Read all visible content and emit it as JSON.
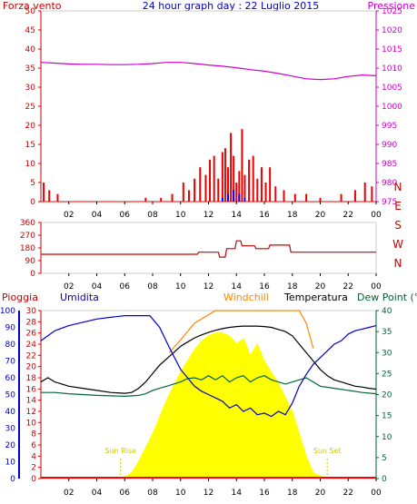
{
  "title": "24 hour graph day : 22 Luglio 2015",
  "colors": {
    "axis_red": "#cc0000",
    "axis_magenta": "#cc00cc",
    "axis_blue": "#0000cc",
    "axis_green": "#006633",
    "wind_bars": "#ee0000",
    "gust_bars": "#0000ee",
    "pressure": "#cc00cc",
    "direction": "#cc0000",
    "humidity": "#0000cc",
    "windchill": "#ff8800",
    "temperature": "#000000",
    "dewpoint": "#006633",
    "solar": "#ffff00",
    "sun_labels": "#cccc00",
    "rain": "#ff0000"
  },
  "x_ticks": [
    "02",
    "04",
    "06",
    "08",
    "10",
    "12",
    "14",
    "16",
    "18",
    "20",
    "22",
    "00"
  ],
  "chart_data": [
    {
      "type": "bar",
      "panel": "wind-pressure",
      "left_axis_label": "Forza vento",
      "right_axis_label": "Pressione",
      "left_ticks": [
        "0",
        "5",
        "10",
        "15",
        "20",
        "25",
        "30",
        "35",
        "40",
        "45",
        "50"
      ],
      "right_ticks": [
        "975",
        "980",
        "985",
        "990",
        "995",
        "1000",
        "1005",
        "1010",
        "1015",
        "1020",
        "1025"
      ],
      "ylim_left": [
        0,
        50
      ],
      "ylim_right": [
        975,
        1025
      ],
      "pressure_series": {
        "x": [
          0,
          1,
          2,
          3,
          4,
          5,
          6,
          7,
          8,
          9,
          10,
          11,
          12,
          13,
          14,
          15,
          16,
          17,
          18,
          19,
          20,
          21,
          22,
          23,
          24
        ],
        "values": [
          1011.5,
          1011.3,
          1011.1,
          1011.0,
          1011.0,
          1010.9,
          1010.9,
          1011.0,
          1011.2,
          1011.5,
          1011.5,
          1011.2,
          1010.8,
          1010.5,
          1010.1,
          1009.6,
          1009.2,
          1008.6,
          1007.9,
          1007.2,
          1007.0,
          1007.2,
          1007.8,
          1008.2,
          1008.0
        ]
      },
      "wind_series": {
        "x": [
          0.2,
          0.6,
          1.2,
          7.5,
          8.6,
          9.4,
          10.2,
          10.6,
          11.0,
          11.4,
          11.8,
          12.1,
          12.4,
          12.7,
          13.0,
          13.2,
          13.4,
          13.6,
          13.8,
          14.0,
          14.2,
          14.4,
          14.6,
          14.9,
          15.2,
          15.5,
          15.8,
          16.1,
          16.4,
          16.8,
          17.4,
          18.2,
          19.0,
          20.0,
          21.5,
          22.5,
          23.2,
          23.7
        ],
        "values": [
          5,
          3,
          2,
          1,
          1,
          2,
          5,
          3,
          6,
          9,
          7,
          11,
          12,
          6,
          13,
          14,
          9,
          18,
          12,
          5,
          8,
          19,
          7,
          11,
          12,
          6,
          9,
          5,
          9,
          4,
          3,
          2,
          2,
          1,
          2,
          3,
          5,
          4
        ]
      },
      "gust_series": {
        "x": [
          13.0,
          13.4,
          13.8,
          14.2,
          14.6
        ],
        "values": [
          1,
          2,
          3,
          2,
          1
        ]
      }
    },
    {
      "type": "line",
      "panel": "wind-direction",
      "left_ticks": [
        "0",
        "90",
        "180",
        "270",
        "360"
      ],
      "right_ticks": [
        "N",
        "W",
        "S",
        "E",
        "N"
      ],
      "ylim": [
        0,
        360
      ],
      "x": [
        0,
        1,
        2,
        4,
        6,
        8,
        10,
        11.2,
        11.3,
        12.0,
        12.7,
        12.8,
        13.2,
        13.3,
        13.9,
        14.0,
        14.3,
        14.4,
        15.3,
        15.4,
        16.3,
        16.4,
        17.8,
        17.9,
        20,
        22,
        24
      ],
      "values": [
        135,
        135,
        135,
        135,
        135,
        135,
        135,
        135,
        150,
        150,
        150,
        115,
        115,
        175,
        175,
        230,
        230,
        195,
        195,
        175,
        175,
        200,
        200,
        150,
        150,
        150,
        150
      ]
    },
    {
      "type": "line",
      "panel": "temperature-humidity-solar",
      "left_axis_label": "Pioggia",
      "left2_axis_label": "Umidita",
      "series_labels": [
        "Windchill",
        "Temperatura",
        "Dew Point (°C"
      ],
      "rain_ticks": [
        "0",
        "2",
        "4",
        "6",
        "8",
        "10",
        "12",
        "14",
        "16",
        "18",
        "20",
        "22",
        "24",
        "26",
        "28",
        "30"
      ],
      "humidity_ticks": [
        "0",
        "10",
        "20",
        "30",
        "40",
        "50",
        "60",
        "70",
        "80",
        "90",
        "100"
      ],
      "temp_ticks": [
        "0",
        "5",
        "10",
        "15",
        "20",
        "25",
        "30",
        "35",
        "40"
      ],
      "ylim_rain": [
        0,
        30
      ],
      "ylim_humidity": [
        0,
        100
      ],
      "ylim_temp": [
        0,
        40
      ],
      "annotations": [
        "Sun Rise",
        "Sun Set"
      ],
      "sunrise_hour": 5.7,
      "sunset_hour": 20.5,
      "humidity": {
        "x": [
          0,
          0.5,
          1,
          2,
          3,
          4,
          5,
          6,
          7,
          7.8,
          8.5,
          9.2,
          10,
          10.5,
          11,
          11.5,
          12,
          12.5,
          13,
          13.5,
          14,
          14.5,
          15,
          15.5,
          16,
          16.5,
          17,
          17.5,
          18,
          18.5,
          19,
          19.5,
          20,
          20.5,
          21,
          21.5,
          22,
          22.5,
          23,
          23.5,
          24
        ],
        "values": [
          82,
          85,
          88,
          91,
          93,
          95,
          96,
          97,
          97,
          97,
          90,
          78,
          65,
          60,
          55,
          52,
          50,
          48,
          46,
          42,
          44,
          40,
          42,
          38,
          39,
          37,
          40,
          38,
          45,
          55,
          62,
          68,
          72,
          76,
          80,
          82,
          86,
          88,
          89,
          90,
          91
        ]
      },
      "windchill": {
        "x": [
          9.2,
          10,
          10.5,
          11,
          11.5,
          12,
          12.5,
          13,
          13.5,
          14,
          14.5,
          15,
          15.5,
          16,
          16.5,
          17,
          17.5,
          18,
          18.5,
          19,
          19.5
        ],
        "values": [
          30,
          33,
          35,
          37,
          38,
          39,
          40,
          40,
          40,
          40,
          40,
          40,
          40,
          40,
          40,
          40,
          40,
          40,
          40,
          37,
          31
        ]
      },
      "temperature": {
        "x": [
          0,
          0.5,
          1,
          2,
          3,
          4,
          5,
          6,
          6.5,
          7,
          7.5,
          8,
          8.5,
          9,
          9.5,
          10,
          10.5,
          11,
          11.5,
          12,
          12.5,
          13,
          13.5,
          14,
          14.5,
          15,
          15.5,
          16,
          16.5,
          17,
          17.5,
          18,
          18.5,
          19,
          19.5,
          20,
          20.5,
          21,
          21.5,
          22,
          22.5,
          23,
          23.5,
          24
        ],
        "values": [
          23,
          24,
          23,
          22,
          21.5,
          21,
          20.5,
          20.3,
          20.5,
          21.5,
          23,
          25,
          27,
          28.5,
          30,
          31.5,
          32.5,
          33.5,
          34.2,
          34.8,
          35.3,
          35.7,
          36,
          36.2,
          36.3,
          36.3,
          36.3,
          36.2,
          36,
          35.5,
          35,
          34,
          32,
          30,
          28,
          26,
          24.5,
          23.5,
          23,
          22.5,
          22,
          21.8,
          21.5,
          21.3
        ]
      },
      "dewpoint": {
        "x": [
          0,
          1,
          2,
          3,
          4,
          5,
          6,
          7,
          7.5,
          8,
          8.5,
          9,
          9.5,
          10,
          10.5,
          11,
          11.5,
          12,
          12.5,
          13,
          13.5,
          14,
          14.5,
          15,
          15.5,
          16,
          16.5,
          17,
          17.5,
          18,
          18.5,
          19,
          19.5,
          20,
          21,
          22,
          23,
          24
        ],
        "values": [
          20.5,
          20.5,
          20.2,
          20,
          19.8,
          19.7,
          19.6,
          19.8,
          20.2,
          21,
          21.5,
          22,
          22.5,
          23,
          23.8,
          24,
          23.5,
          24.5,
          23.5,
          24.5,
          23,
          24,
          24.5,
          23,
          24,
          24.5,
          23.5,
          23,
          22.5,
          23,
          23.5,
          24,
          23,
          22,
          21.5,
          21,
          20.5,
          20.2
        ]
      },
      "solar": {
        "x": [
          5.8,
          6.5,
          7,
          8,
          9,
          10,
          11,
          11.5,
          12,
          12.5,
          13,
          13.5,
          14,
          14.5,
          15,
          15.5,
          16,
          17,
          18,
          18.5,
          19,
          19.5,
          20,
          20.5
        ],
        "values": [
          0,
          1,
          3,
          8,
          14,
          19,
          23,
          24.5,
          25.5,
          26,
          26,
          25.5,
          24,
          25,
          22,
          24,
          21,
          17,
          12,
          8,
          4,
          1,
          0.5,
          0
        ]
      },
      "rain_values": "0"
    }
  ]
}
